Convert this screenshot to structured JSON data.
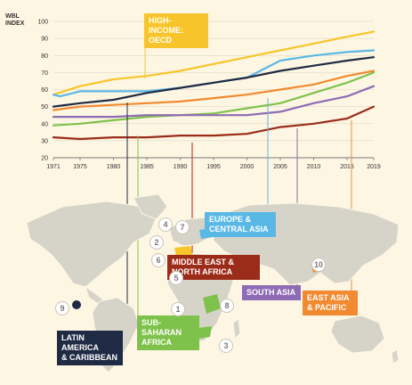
{
  "colors": {
    "high_income_oecd": "#f7c52b",
    "europe_central_asia": "#5ab8e6",
    "latin_america_caribbean": "#1f2a44",
    "east_asia_pacific": "#f28a30",
    "south_asia": "#8e6bb5",
    "sub_saharan_africa": "#7fc24b",
    "middle_east_north_africa": "#9b2c1a",
    "map_land": "#d6d3c8",
    "map_water": "#fdf6e3"
  },
  "chart_data": {
    "type": "line",
    "ylabel": "WBL INDEX",
    "ylim": [
      20,
      100
    ],
    "yticks": [
      20,
      30,
      40,
      50,
      60,
      70,
      80,
      90,
      100
    ],
    "xlim": [
      1971,
      2019
    ],
    "xticks": [
      1971,
      1975,
      1980,
      1985,
      1990,
      1995,
      2000,
      2005,
      2010,
      2015,
      2019
    ],
    "grid": "horizontal",
    "series": [
      {
        "name": "HIGH-INCOME: OECD",
        "color_key": "high_income_oecd",
        "x": [
          1971,
          1975,
          1980,
          1985,
          1990,
          1995,
          2000,
          2005,
          2010,
          2015,
          2019
        ],
        "y": [
          57,
          62,
          66,
          68,
          71,
          75,
          79,
          83,
          87,
          91,
          94
        ]
      },
      {
        "name": "EUROPE & CENTRAL ASIA",
        "color_key": "europe_central_asia",
        "x": [
          1971,
          1972,
          1975,
          1980,
          1985,
          1990,
          1995,
          2000,
          2005,
          2010,
          2015,
          2019
        ],
        "y": [
          57,
          56,
          59,
          59,
          59,
          61,
          64,
          67,
          77,
          80,
          82,
          83
        ]
      },
      {
        "name": "LATIN AMERICA & CARIBBEAN",
        "color_key": "latin_america_caribbean",
        "x": [
          1971,
          1975,
          1980,
          1985,
          1990,
          1995,
          2000,
          2005,
          2010,
          2015,
          2019
        ],
        "y": [
          50,
          52,
          54,
          58,
          61,
          64,
          67,
          71,
          74,
          77,
          79
        ]
      },
      {
        "name": "EAST ASIA & PACIFIC",
        "color_key": "east_asia_pacific",
        "x": [
          1971,
          1975,
          1980,
          1985,
          1990,
          1995,
          2000,
          2005,
          2010,
          2015,
          2019
        ],
        "y": [
          48,
          50,
          51,
          52,
          53,
          55,
          57,
          60,
          63,
          68,
          71
        ]
      },
      {
        "name": "SUB-SAHARAN AFRICA",
        "color_key": "sub_saharan_africa",
        "x": [
          1971,
          1975,
          1980,
          1985,
          1990,
          1995,
          2000,
          2005,
          2010,
          2015,
          2019
        ],
        "y": [
          39,
          40,
          42,
          44,
          45,
          46,
          49,
          52,
          58,
          64,
          70
        ]
      },
      {
        "name": "SOUTH ASIA",
        "color_key": "south_asia",
        "x": [
          1971,
          1975,
          1980,
          1985,
          1990,
          1995,
          2000,
          2005,
          2010,
          2015,
          2019
        ],
        "y": [
          44,
          44,
          44,
          45,
          45,
          45,
          45,
          47,
          52,
          56,
          62
        ]
      },
      {
        "name": "MIDDLE EAST & NORTH AFRICA",
        "color_key": "middle_east_north_africa",
        "x": [
          1971,
          1975,
          1980,
          1985,
          1990,
          1995,
          2000,
          2005,
          2010,
          2015,
          2019
        ],
        "y": [
          32,
          31,
          32,
          32,
          33,
          33,
          34,
          38,
          40,
          43,
          50
        ]
      }
    ]
  },
  "region_labels": [
    {
      "key": "high_income_oecd",
      "line1": "HIGH-INCOME:",
      "line2": "OECD",
      "text_color": "#ffffff"
    },
    {
      "key": "europe_central_asia",
      "line1": "EUROPE &",
      "line2": "CENTRAL ASIA"
    },
    {
      "key": "middle_east_north_africa",
      "line1": "MIDDLE EAST &",
      "line2": "NORTH AFRICA"
    },
    {
      "key": "south_asia",
      "line1": "SOUTH ASIA",
      "line2": ""
    },
    {
      "key": "east_asia_pacific",
      "line1": "EAST ASIA",
      "line2": "& PACIFIC"
    },
    {
      "key": "sub_saharan_africa",
      "line1": "SUB-SAHARAN",
      "line2": "AFRICA"
    },
    {
      "key": "latin_america_caribbean",
      "line1": "LATIN AMERICA",
      "line2": "& CARIBBEAN"
    }
  ],
  "map_markers": [
    "1",
    "2",
    "3",
    "4",
    "5",
    "6",
    "7",
    "8",
    "9",
    "10"
  ]
}
